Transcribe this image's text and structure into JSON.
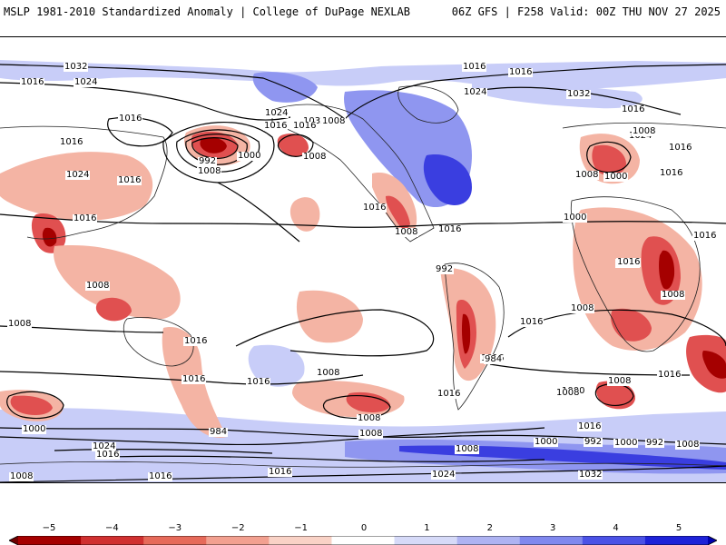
{
  "header": {
    "left_title": "MSLP 1981-2010 Standardized Anomaly | College of DuPage NEXLAB",
    "right_title": "06Z GFS | F258 Valid: 00Z THU NOV 27 2025"
  },
  "map": {
    "isobar_labels": [
      "1032",
      "1016",
      "1024",
      "1016",
      "1016",
      "1024",
      "1016",
      "1016",
      "992",
      "1000",
      "1008",
      "1008",
      "1032",
      "1016",
      "1024",
      "1016",
      "1008",
      "1016",
      "1016",
      "1016",
      "1024",
      "1032",
      "1016",
      "1024",
      "1016",
      "1016",
      "1008",
      "1000",
      "1008",
      "1016",
      "1008",
      "1008",
      "1008",
      "1016",
      "1008",
      "1016",
      "1000",
      "1008",
      "1008",
      "1016",
      "1016",
      "1016",
      "992",
      "1008",
      "1008",
      "1016",
      "1008",
      "1016",
      "992",
      "984",
      "1000",
      "1016",
      "992",
      "1000",
      "992",
      "1008",
      "1000",
      "1024",
      "1016",
      "1016",
      "1000",
      "1008",
      "1016",
      "1024",
      "1032",
      "1008",
      "1008",
      "1008",
      "984",
      "1016",
      "1016"
    ],
    "colors": {
      "strong_negative": "#a50000",
      "negative": "#e05050",
      "weak_negative": "#f4b4a4",
      "weak_positive": "#c8cdf8",
      "positive": "#8f96f0",
      "strong_positive": "#3a3ee0",
      "land_outline": "#222222",
      "isobar": "#000000"
    }
  },
  "colorbar": {
    "ticks": [
      "−5",
      "−4",
      "−3",
      "−2",
      "−1",
      "0",
      "1",
      "2",
      "3",
      "4",
      "5"
    ],
    "colors": [
      "#6e0000",
      "#a50000",
      "#d03030",
      "#e66a5a",
      "#f2a090",
      "#f9d2c6",
      "#ffffff",
      "#d6daf8",
      "#aeb3f2",
      "#8088ee",
      "#4b52e6",
      "#1e22d8",
      "#0000b0"
    ]
  }
}
